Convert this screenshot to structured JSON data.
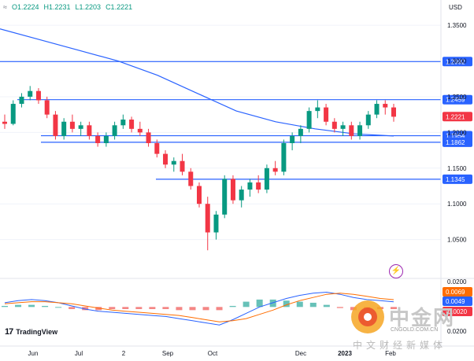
{
  "header": {
    "ohlc_icon": "≈",
    "open": "O1.2224",
    "high": "H1.2231",
    "low": "L1.2203",
    "close": "C1.2221"
  },
  "axis": {
    "currency": "USD",
    "price_ticks": [
      "1.3500",
      "1.3000",
      "1.2500",
      "1.2000",
      "1.1500",
      "1.1000",
      "1.0500"
    ],
    "indicator_ticks": [
      "0.0200",
      "0.0200"
    ],
    "time_ticks": [
      "Jun",
      "Jul",
      "2",
      "Sep",
      "Oct",
      "Dec",
      "2023",
      "Feb"
    ]
  },
  "levels": [
    {
      "value": 1.2992,
      "label": "1.2992"
    },
    {
      "value": 1.2459,
      "label": "1.2459"
    },
    {
      "value": 1.1954,
      "label": "1.1954"
    },
    {
      "value": 1.1862,
      "label": "1.1862"
    },
    {
      "value": 1.1345,
      "label": "1.1345"
    }
  ],
  "price_tag": {
    "value": 1.2221,
    "label": "1.2221",
    "color": "#f23645"
  },
  "macd_tags": [
    "0.0069",
    "0.0049",
    "-0.0020"
  ],
  "colors": {
    "up": "#089981",
    "down": "#f23645",
    "level": "#2962ff",
    "ma": "#2962ff",
    "macd": "#2962ff",
    "signal": "#ff6d00"
  },
  "brand": {
    "tradingview": "TradingView",
    "flash_icon": "lightning-icon"
  },
  "watermark": {
    "title": "中金网",
    "url": "CNGOLD.COM.CN",
    "subtitle": "中文财经新媒体"
  },
  "chart_data": {
    "type": "candlestick",
    "ylim": [
      1.0,
      1.37
    ],
    "ma": [
      1.345,
      1.33,
      1.315,
      1.3,
      1.28,
      1.255,
      1.23,
      1.215,
      1.205,
      1.198,
      1.195
    ],
    "candles": [
      [
        1.215,
        1.225,
        1.205,
        1.212
      ],
      [
        1.212,
        1.245,
        1.21,
        1.24
      ],
      [
        1.24,
        1.255,
        1.235,
        1.25
      ],
      [
        1.25,
        1.265,
        1.245,
        1.258
      ],
      [
        1.258,
        1.262,
        1.24,
        1.245
      ],
      [
        1.245,
        1.25,
        1.22,
        1.225
      ],
      [
        1.225,
        1.23,
        1.19,
        1.195
      ],
      [
        1.195,
        1.22,
        1.19,
        1.215
      ],
      [
        1.215,
        1.225,
        1.2,
        1.205
      ],
      [
        1.205,
        1.215,
        1.195,
        1.21
      ],
      [
        1.21,
        1.215,
        1.19,
        1.195
      ],
      [
        1.195,
        1.2,
        1.18,
        1.185
      ],
      [
        1.185,
        1.2,
        1.18,
        1.195
      ],
      [
        1.195,
        1.215,
        1.19,
        1.21
      ],
      [
        1.21,
        1.225,
        1.205,
        1.218
      ],
      [
        1.218,
        1.222,
        1.2,
        1.205
      ],
      [
        1.205,
        1.215,
        1.195,
        1.2
      ],
      [
        1.2,
        1.205,
        1.18,
        1.185
      ],
      [
        1.185,
        1.19,
        1.165,
        1.17
      ],
      [
        1.17,
        1.175,
        1.15,
        1.155
      ],
      [
        1.155,
        1.165,
        1.145,
        1.16
      ],
      [
        1.16,
        1.17,
        1.14,
        1.145
      ],
      [
        1.145,
        1.15,
        1.12,
        1.125
      ],
      [
        1.125,
        1.13,
        1.095,
        1.1
      ],
      [
        1.1,
        1.11,
        1.035,
        1.06
      ],
      [
        1.06,
        1.09,
        1.05,
        1.085
      ],
      [
        1.085,
        1.14,
        1.08,
        1.135
      ],
      [
        1.135,
        1.14,
        1.1,
        1.105
      ],
      [
        1.105,
        1.125,
        1.095,
        1.12
      ],
      [
        1.12,
        1.135,
        1.11,
        1.13
      ],
      [
        1.13,
        1.14,
        1.115,
        1.12
      ],
      [
        1.12,
        1.155,
        1.115,
        1.15
      ],
      [
        1.15,
        1.16,
        1.14,
        1.145
      ],
      [
        1.145,
        1.19,
        1.14,
        1.185
      ],
      [
        1.185,
        1.2,
        1.175,
        1.195
      ],
      [
        1.195,
        1.21,
        1.185,
        1.205
      ],
      [
        1.205,
        1.235,
        1.2,
        1.23
      ],
      [
        1.23,
        1.245,
        1.22,
        1.235
      ],
      [
        1.235,
        1.24,
        1.21,
        1.215
      ],
      [
        1.215,
        1.22,
        1.2,
        1.205
      ],
      [
        1.205,
        1.215,
        1.195,
        1.21
      ],
      [
        1.21,
        1.215,
        1.19,
        1.195
      ],
      [
        1.195,
        1.215,
        1.19,
        1.21
      ],
      [
        1.21,
        1.23,
        1.205,
        1.225
      ],
      [
        1.225,
        1.245,
        1.22,
        1.24
      ],
      [
        1.24,
        1.245,
        1.225,
        1.235
      ],
      [
        1.235,
        1.24,
        1.215,
        1.222
      ]
    ],
    "macd": [
      0.004,
      0.006,
      0.007,
      0.006,
      0.004,
      0.001,
      -0.002,
      -0.004,
      -0.005,
      -0.006,
      -0.007,
      -0.008,
      -0.009,
      -0.011,
      -0.013,
      -0.015,
      -0.017,
      -0.012,
      -0.006,
      0.0,
      0.004,
      0.008,
      0.011,
      0.013,
      0.014,
      0.012,
      0.009,
      0.007,
      0.006,
      0.0049
    ],
    "signal": [
      0.003,
      0.004,
      0.005,
      0.005,
      0.004,
      0.003,
      0.001,
      -0.001,
      -0.003,
      -0.004,
      -0.005,
      -0.006,
      -0.007,
      -0.008,
      -0.01,
      -0.012,
      -0.014,
      -0.013,
      -0.011,
      -0.007,
      -0.003,
      0.002,
      0.006,
      0.009,
      0.012,
      0.013,
      0.012,
      0.01,
      0.008,
      0.0069
    ],
    "indicator_ylim": [
      -0.028,
      0.024
    ]
  }
}
